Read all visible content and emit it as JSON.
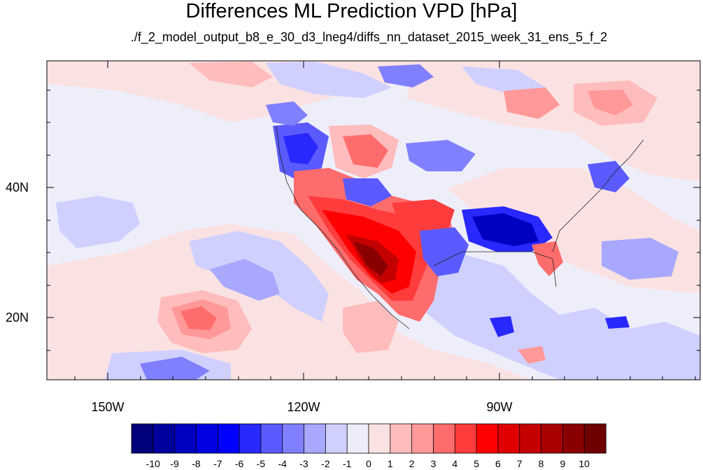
{
  "title": "Differences ML Prediction VPD [hPa]",
  "subtitle": "./f_2_model_output_b8_e_30_d3_lneg4/diffs_nn_dataset_2015_week_31_ens_5_f_2",
  "lat_labels": [
    "40N",
    "20N"
  ],
  "lon_labels": [
    "150W",
    "120W",
    "90W"
  ],
  "colorbar": {
    "labels": [
      "-10",
      "-9",
      "-8",
      "-7",
      "-6",
      "-5",
      "-4",
      "-3",
      "-2",
      "-1",
      "0",
      "1",
      "2",
      "3",
      "4",
      "5",
      "6",
      "7",
      "8",
      "9",
      "10"
    ],
    "colors": [
      "#00007a",
      "#00009c",
      "#0000c0",
      "#0000e0",
      "#0000ff",
      "#2828ff",
      "#5a5aff",
      "#8080ff",
      "#a8a8ff",
      "#d0d0ff",
      "#ececfb",
      "#fbe2e2",
      "#ffbcbc",
      "#ff9898",
      "#ff6c6c",
      "#ff3c3c",
      "#ff0000",
      "#e00000",
      "#c40000",
      "#a80000",
      "#8a0000",
      "#6e0000"
    ]
  },
  "map_colors": {
    "ocean_background": "#eeeefb",
    "light_red": "#fbe2e2",
    "light_blue": "#d0d0ff",
    "mid_blue": "#a8a8ff",
    "strong_blue": "#5a5aff",
    "deep_blue": "#0000e0",
    "mid_red": "#ffbcbc",
    "strong_red": "#ff6c6c",
    "bright_red": "#ff0000",
    "dark_red": "#a80000"
  }
}
